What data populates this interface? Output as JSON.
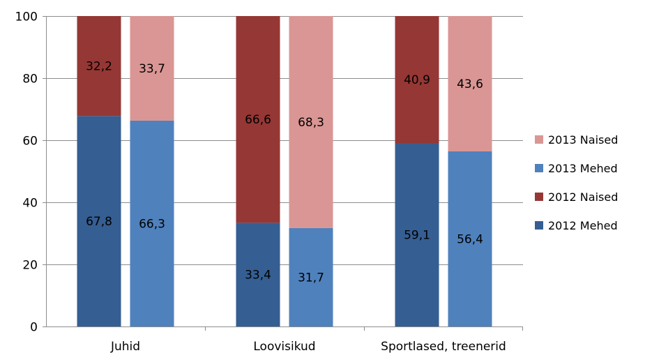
{
  "chart_data": {
    "type": "bar",
    "stacked": true,
    "categories": [
      "Juhid",
      "Loovisikud",
      "Sportlased, treenerid"
    ],
    "ylim": [
      0,
      100
    ],
    "yticks": [
      0,
      20,
      40,
      60,
      80,
      100
    ],
    "grid": true,
    "legend_position": "right",
    "groups": [
      {
        "name": "2012",
        "segments": [
          {
            "name": "2012 Mehed",
            "color": "#355E92",
            "values": [
              67.8,
              33.4,
              59.1
            ],
            "labels": [
              "67,8",
              "33,4",
              "59,1"
            ]
          },
          {
            "name": "2012 Naised",
            "color": "#953734",
            "values": [
              32.2,
              66.6,
              40.9
            ],
            "labels": [
              "32,2",
              "66,6",
              "40,9"
            ]
          }
        ]
      },
      {
        "name": "2013",
        "segments": [
          {
            "name": "2013 Mehed",
            "color": "#4F81BD",
            "values": [
              66.3,
              31.7,
              56.4
            ],
            "labels": [
              "66,3",
              "31,7",
              "56,4"
            ]
          },
          {
            "name": "2013 Naised",
            "color": "#DA9694",
            "values": [
              33.7,
              68.3,
              43.6
            ],
            "labels": [
              "33,7",
              "68,3",
              "43,6"
            ]
          }
        ]
      }
    ],
    "legend": [
      {
        "label": "2013 Naised",
        "color": "#DA9694"
      },
      {
        "label": "2013 Mehed",
        "color": "#4F81BD"
      },
      {
        "label": "2012 Naised",
        "color": "#953734"
      },
      {
        "label": "2012 Mehed",
        "color": "#355E92"
      }
    ]
  }
}
